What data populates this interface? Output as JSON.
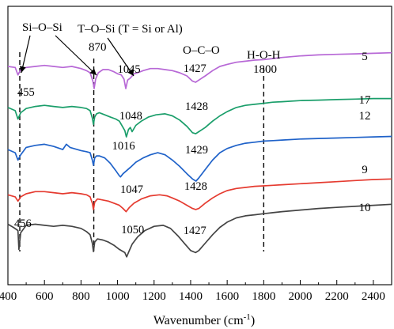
{
  "chart_data": {
    "type": "line",
    "xlabel": "Wavenumber (cm",
    "xlabel_sup": "-1",
    "xlabel_close": ")",
    "xlim": [
      400,
      2500
    ],
    "xticks": [
      400,
      600,
      800,
      1000,
      1200,
      1400,
      1600,
      1800,
      2000,
      2200,
      2400
    ],
    "grid": false,
    "reference_lines": [
      {
        "x": 465,
        "style": "dashed"
      },
      {
        "x": 870,
        "style": "dashed"
      },
      {
        "x": 1800,
        "style": "dashed"
      }
    ],
    "headers": [
      {
        "id": "si-o-si",
        "text": "Si–O–Si"
      },
      {
        "id": "t-o-si",
        "text": "T–O–Si (T = Si or Al)"
      },
      {
        "id": "h-870",
        "text": "870"
      },
      {
        "id": "o-c-o",
        "text": "O–C–O"
      },
      {
        "id": "h-o-h",
        "text": "H-O-H"
      },
      {
        "id": "h-1800",
        "text": "1800"
      }
    ],
    "series": [
      {
        "name": "5",
        "color": "#b768d6",
        "x": [
          400,
          440,
          455,
          470,
          500,
          550,
          600,
          650,
          700,
          750,
          800,
          830,
          850,
          865,
          872,
          880,
          895,
          920,
          950,
          980,
          1000,
          1020,
          1035,
          1045,
          1055,
          1070,
          1090,
          1110,
          1140,
          1180,
          1220,
          1260,
          1300,
          1340,
          1380,
          1410,
          1427,
          1445,
          1480,
          1520,
          1560,
          1600,
          1650,
          1700,
          1750,
          1800,
          1850,
          1900,
          2000,
          2100,
          2200,
          2300,
          2400,
          2500
        ],
        "y": [
          0.6,
          0.5,
          -0.2,
          0.3,
          0.5,
          0.6,
          0.7,
          0.6,
          0.5,
          0.6,
          0.4,
          0.2,
          0.0,
          -0.8,
          -1.5,
          -0.6,
          0.0,
          0.3,
          0.3,
          0.1,
          -0.1,
          -0.2,
          -0.6,
          -1.5,
          -0.7,
          -0.5,
          -0.1,
          0.0,
          0.2,
          0.4,
          0.4,
          0.3,
          0.2,
          0.0,
          -0.3,
          -0.8,
          -0.9,
          -0.7,
          -0.3,
          0.2,
          0.6,
          0.8,
          1.0,
          1.1,
          1.2,
          1.25,
          1.35,
          1.45,
          1.6,
          1.7,
          1.75,
          1.8,
          1.85,
          1.9
        ],
        "labels": [
          {
            "text": "1045"
          },
          {
            "text": "1427"
          }
        ]
      },
      {
        "name": "17",
        "color": "#1a9e6a",
        "x": [
          400,
          440,
          455,
          470,
          500,
          550,
          600,
          650,
          700,
          750,
          800,
          830,
          850,
          862,
          868,
          875,
          885,
          900,
          930,
          960,
          990,
          1010,
          1030,
          1040,
          1048,
          1060,
          1070,
          1080,
          1100,
          1130,
          1170,
          1210,
          1260,
          1300,
          1340,
          1380,
          1410,
          1428,
          1445,
          1480,
          1520,
          1560,
          1600,
          1650,
          1700,
          1750,
          1800,
          1850,
          1900,
          2000,
          2100,
          2200,
          2300,
          2400,
          2500
        ],
        "y": [
          -3.3,
          -3.6,
          -4.4,
          -3.8,
          -3.4,
          -3.2,
          -3.1,
          -3.2,
          -3.3,
          -3.2,
          -3.3,
          -3.4,
          -3.6,
          -4.3,
          -4.9,
          -4.2,
          -3.9,
          -3.8,
          -4.0,
          -4.2,
          -4.4,
          -4.6,
          -5.2,
          -5.5,
          -6.1,
          -5.4,
          -5.2,
          -5.6,
          -5.0,
          -4.6,
          -4.2,
          -4.0,
          -3.9,
          -4.1,
          -4.5,
          -5.1,
          -5.7,
          -5.8,
          -5.6,
          -5.2,
          -4.6,
          -4.1,
          -3.7,
          -3.3,
          -3.1,
          -3.0,
          -2.9,
          -2.8,
          -2.75,
          -2.65,
          -2.6,
          -2.55,
          -2.5,
          -2.45,
          -2.45
        ],
        "labels": [
          {
            "text": "1048"
          },
          {
            "text": "1428"
          }
        ]
      },
      {
        "name": "12",
        "color": "#1f62c9",
        "x": [
          400,
          440,
          455,
          470,
          500,
          550,
          600,
          650,
          700,
          720,
          740,
          800,
          830,
          850,
          862,
          868,
          875,
          885,
          900,
          930,
          960,
          990,
          1010,
          1016,
          1030,
          1050,
          1070,
          1100,
          1140,
          1180,
          1220,
          1260,
          1300,
          1340,
          1380,
          1410,
          1429,
          1445,
          1480,
          1520,
          1560,
          1600,
          1650,
          1700,
          1750,
          1800,
          1850,
          1900,
          2000,
          2100,
          2200,
          2300,
          2400,
          2500
        ],
        "y": [
          -7.3,
          -7.6,
          -8.3,
          -7.8,
          -7.1,
          -6.9,
          -6.8,
          -7.0,
          -7.3,
          -6.8,
          -7.1,
          -7.4,
          -7.5,
          -7.6,
          -8.3,
          -8.8,
          -8.1,
          -7.9,
          -7.9,
          -8.1,
          -8.6,
          -9.3,
          -9.8,
          -9.9,
          -9.6,
          -9.3,
          -9.0,
          -8.5,
          -8.1,
          -7.8,
          -7.6,
          -7.8,
          -8.3,
          -8.9,
          -9.6,
          -10.1,
          -10.3,
          -10.0,
          -9.2,
          -8.3,
          -7.6,
          -7.2,
          -6.9,
          -6.7,
          -6.6,
          -6.5,
          -6.45,
          -6.4,
          -6.3,
          -6.25,
          -6.2,
          -6.15,
          -6.1,
          -6.05
        ],
        "labels": [
          {
            "text": "1016"
          },
          {
            "text": "1429"
          }
        ]
      },
      {
        "name": "9",
        "color": "#e53b30",
        "x": [
          400,
          440,
          455,
          470,
          500,
          550,
          600,
          650,
          700,
          750,
          800,
          830,
          850,
          862,
          868,
          875,
          890,
          920,
          950,
          980,
          1010,
          1030,
          1047,
          1065,
          1090,
          1130,
          1180,
          1230,
          1270,
          1300,
          1340,
          1380,
          1410,
          1428,
          1445,
          1480,
          1520,
          1560,
          1600,
          1650,
          1700,
          1750,
          1800,
          1850,
          1900,
          2000,
          2100,
          2200,
          2300,
          2400,
          2500
        ],
        "y": [
          -11.6,
          -11.8,
          -12.2,
          -11.8,
          -11.5,
          -11.3,
          -11.3,
          -11.4,
          -11.5,
          -11.4,
          -11.5,
          -11.6,
          -11.8,
          -12.4,
          -13.0,
          -12.3,
          -12.0,
          -12.1,
          -12.2,
          -12.4,
          -12.6,
          -12.9,
          -13.2,
          -12.8,
          -12.4,
          -12.0,
          -11.7,
          -11.6,
          -11.7,
          -11.9,
          -12.2,
          -12.6,
          -12.9,
          -13.0,
          -12.9,
          -12.4,
          -11.9,
          -11.5,
          -11.2,
          -11.0,
          -10.9,
          -10.8,
          -10.75,
          -10.7,
          -10.65,
          -10.55,
          -10.45,
          -10.35,
          -10.25,
          -10.15,
          -10.1
        ],
        "labels": [
          {
            "text": "1047"
          },
          {
            "text": "1428"
          }
        ]
      },
      {
        "name": "10",
        "color": "#444444",
        "x": [
          400,
          430,
          455,
          460,
          470,
          500,
          550,
          600,
          650,
          700,
          750,
          800,
          830,
          850,
          862,
          868,
          875,
          890,
          920,
          950,
          980,
          1010,
          1040,
          1050,
          1062,
          1080,
          1110,
          1150,
          1200,
          1250,
          1290,
          1330,
          1370,
          1400,
          1427,
          1445,
          1480,
          1520,
          1560,
          1600,
          1650,
          1700,
          1750,
          1800,
          1850,
          1900,
          2000,
          2100,
          2200,
          2300,
          2400,
          2500
        ],
        "y": [
          -14.4,
          -14.7,
          -15.0,
          -16.8,
          -15.2,
          -14.5,
          -14.4,
          -14.5,
          -14.6,
          -14.5,
          -14.6,
          -14.8,
          -15.1,
          -15.4,
          -16.2,
          -17.0,
          -16.1,
          -15.8,
          -15.9,
          -16.1,
          -16.4,
          -16.8,
          -17.1,
          -17.5,
          -17.0,
          -16.3,
          -15.6,
          -15.0,
          -14.6,
          -14.5,
          -14.8,
          -15.5,
          -16.3,
          -16.9,
          -17.1,
          -16.9,
          -16.2,
          -15.4,
          -14.7,
          -14.2,
          -13.8,
          -13.6,
          -13.5,
          -13.4,
          -13.3,
          -13.2,
          -13.05,
          -12.9,
          -12.8,
          -12.7,
          -12.6,
          -12.5
        ],
        "labels": [
          {
            "text": "1050"
          },
          {
            "text": "1427"
          }
        ]
      }
    ],
    "extra_labels": [
      {
        "id": "lbl-455",
        "text": "455"
      },
      {
        "id": "lbl-456",
        "text": "456"
      }
    ]
  }
}
